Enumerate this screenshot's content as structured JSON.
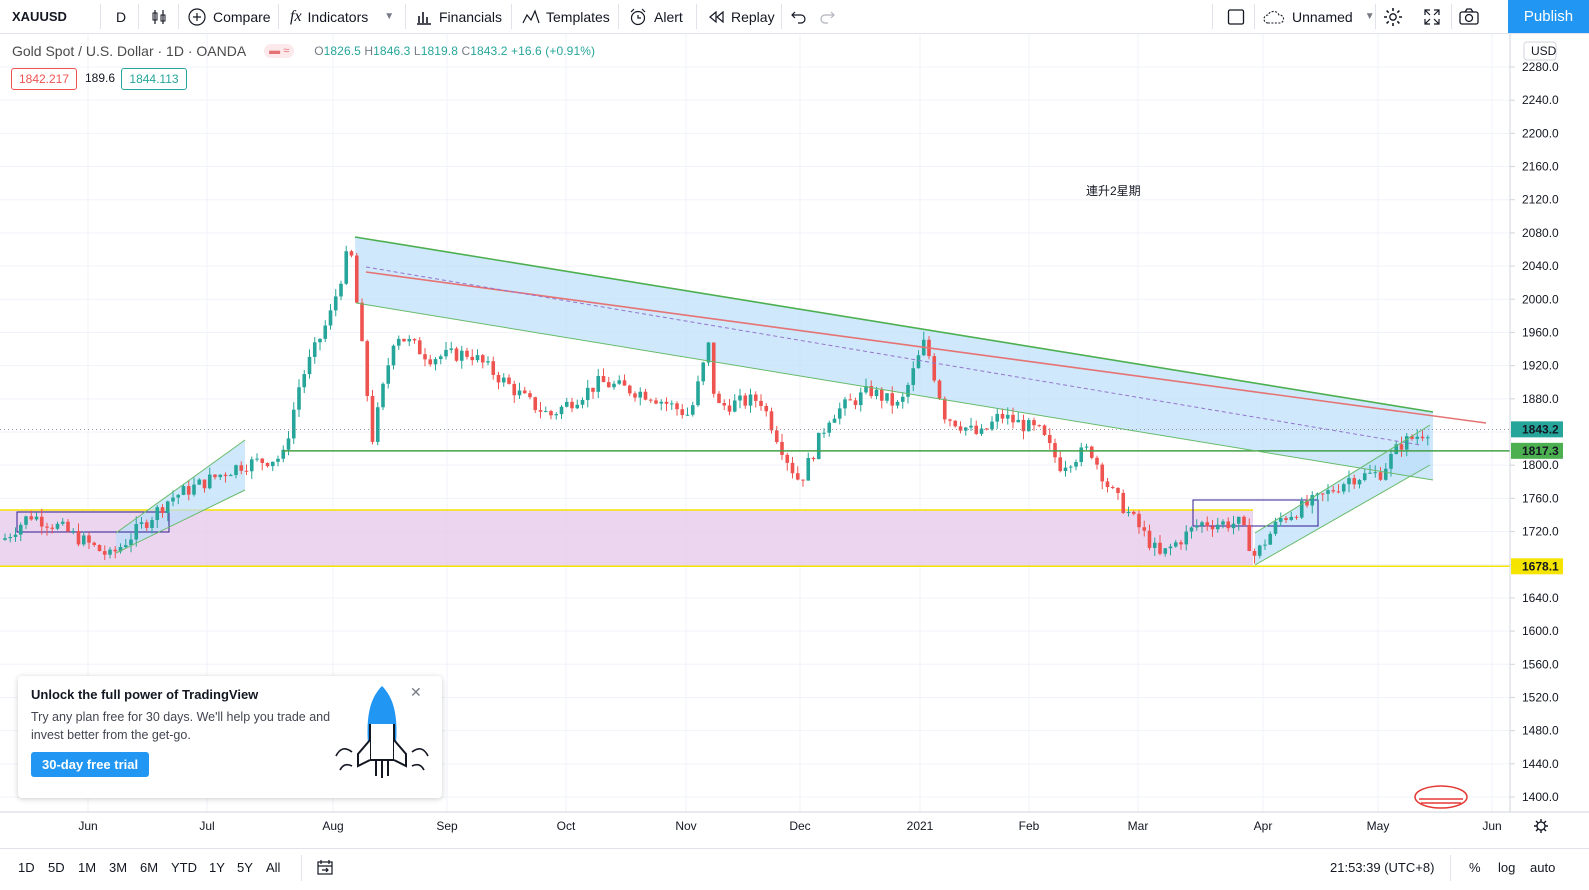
{
  "toolbar": {
    "symbol": "XAUUSD",
    "interval": "D",
    "compare": "Compare",
    "indicators": "Indicators",
    "financials": "Financials",
    "templates": "Templates",
    "alert": "Alert",
    "replay": "Replay",
    "layout_name": "Unnamed",
    "publish": "Publish"
  },
  "legend": {
    "title": "Gold Spot / U.S. Dollar · 1D · OANDA",
    "open_label": "O",
    "open": "1826.5",
    "high_label": "H",
    "high": "1846.3",
    "low_label": "L",
    "low": "1819.8",
    "close_label": "C",
    "close": "1843.2",
    "change": "+16.6 (+0.91%)",
    "bid": "1842.217",
    "spread": "189.6",
    "ask": "1844.113"
  },
  "annotation": "連升2星期",
  "price_axis": {
    "currency": "USD",
    "markers": [
      {
        "value": "1843.2",
        "color": "#26a69a"
      },
      {
        "value": "1817.3",
        "color": "#4caf50"
      },
      {
        "value": "1678.1",
        "color": "#f5e400"
      }
    ]
  },
  "chart_data": {
    "type": "candlestick",
    "y_ticks": [
      "2280.0",
      "2240.0",
      "2200.0",
      "2160.0",
      "2120.0",
      "2080.0",
      "2040.0",
      "2000.0",
      "1960.0",
      "1920.0",
      "1880.0",
      "1840.0",
      "1800.0",
      "1760.0",
      "1720.0",
      "1680.0",
      "1640.0",
      "1600.0",
      "1560.0",
      "1520.0",
      "1480.0",
      "1440.0",
      "1400.0"
    ],
    "x_ticks": [
      "Jun",
      "Jul",
      "Aug",
      "Sep",
      "Oct",
      "Nov",
      "Dec",
      "2021",
      "Feb",
      "Mar",
      "Apr",
      "May",
      "Jun"
    ],
    "ylim": [
      1380,
      2300
    ],
    "last_close": 1843.2,
    "support_zone": [
      1678.1,
      1746
    ],
    "horizontal_line": 1817.3,
    "swing_high": 2075,
    "swing_low": 1678.1
  },
  "bottombar": {
    "ranges": [
      "1D",
      "5D",
      "1M",
      "3M",
      "6M",
      "YTD",
      "1Y",
      "5Y",
      "All"
    ],
    "time": "21:53:39 (UTC+8)",
    "percent": "%",
    "log": "log",
    "auto": "auto"
  },
  "promo": {
    "title": "Unlock the full power of TradingView",
    "body": "Try any plan free for 30 days. We'll help you trade and invest better from the get-go.",
    "cta": "30-day free trial"
  }
}
